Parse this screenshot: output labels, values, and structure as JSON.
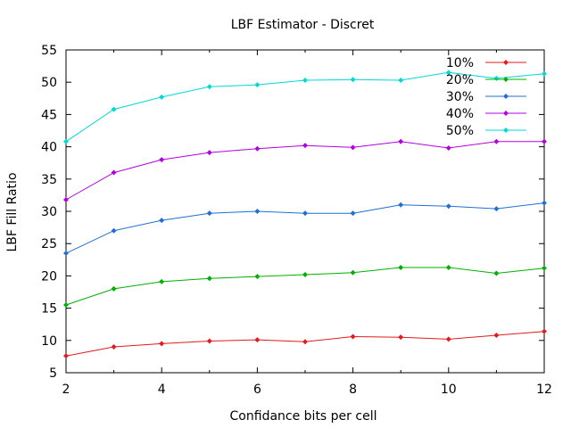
{
  "chart_data": {
    "type": "line",
    "title": "LBF Estimator - Discret",
    "xlabel": "Confidance bits per cell",
    "ylabel": "LBF Fill Ratio",
    "xlim": [
      2,
      12
    ],
    "ylim": [
      5,
      55
    ],
    "x_ticks": [
      "2",
      "4",
      "6",
      "8",
      "10",
      "12"
    ],
    "y_ticks": [
      "5",
      "10",
      "15",
      "20",
      "25",
      "30",
      "35",
      "40",
      "45",
      "50",
      "55"
    ],
    "grid": false,
    "legend_position": "top-right",
    "x": [
      2,
      3,
      4,
      5,
      6,
      7,
      8,
      9,
      10,
      11,
      12
    ],
    "series": [
      {
        "name": "10%",
        "color": "#e41a1c",
        "values": [
          7.6,
          9.0,
          9.5,
          9.9,
          10.1,
          9.8,
          10.6,
          10.5,
          10.2,
          10.8,
          11.4
        ]
      },
      {
        "name": "20%",
        "color": "#00b000",
        "values": [
          15.5,
          18.0,
          19.1,
          19.6,
          19.9,
          20.2,
          20.5,
          21.3,
          21.3,
          20.4,
          21.2
        ]
      },
      {
        "name": "30%",
        "color": "#1f6fd6",
        "values": [
          23.5,
          27.0,
          28.6,
          29.7,
          30.0,
          29.7,
          29.7,
          31.0,
          30.8,
          30.4,
          31.3
        ]
      },
      {
        "name": "40%",
        "color": "#b000e0",
        "values": [
          31.8,
          36.0,
          38.0,
          39.1,
          39.7,
          40.2,
          39.9,
          40.8,
          39.8,
          40.8,
          40.8
        ]
      },
      {
        "name": "50%",
        "color": "#00d8d8",
        "values": [
          40.8,
          45.8,
          47.7,
          49.3,
          49.6,
          50.3,
          50.4,
          50.3,
          51.5,
          50.6,
          51.3
        ]
      }
    ]
  }
}
